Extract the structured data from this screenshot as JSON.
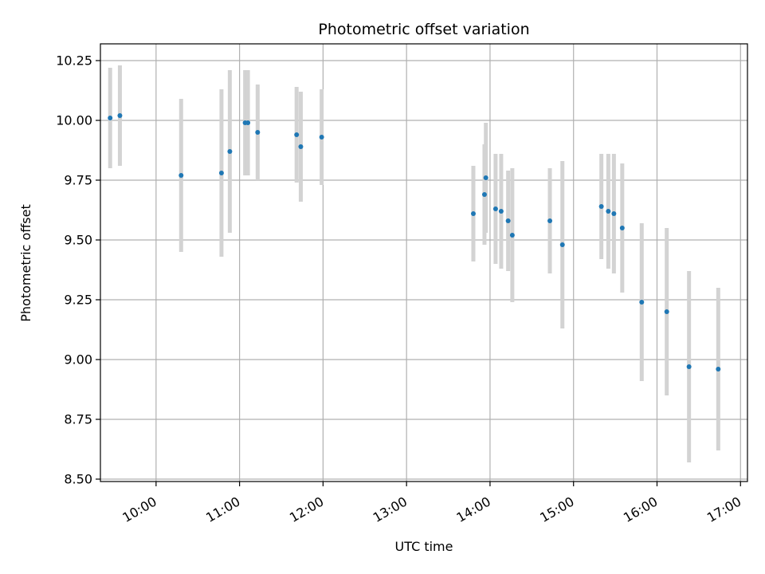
{
  "chart_data": {
    "type": "scatter",
    "title": "Photometric offset variation",
    "xlabel": "UTC time",
    "ylabel": "Photometric offset",
    "grid": true,
    "xlim": [
      "09:20",
      "17:05"
    ],
    "ylim": [
      8.49,
      10.32
    ],
    "x_ticks": [
      "10:00",
      "11:00",
      "12:00",
      "13:00",
      "14:00",
      "15:00",
      "16:00",
      "17:00"
    ],
    "y_ticks": [
      "8.50",
      "8.75",
      "9.00",
      "9.25",
      "9.50",
      "9.75",
      "10.00",
      "10.25"
    ],
    "colors": {
      "points": "#1f77b4",
      "errorbars": "#d3d3d3",
      "grid": "#b0b0b0"
    },
    "points": [
      {
        "x": "09:27",
        "y": 10.01,
        "yerr": 0.21
      },
      {
        "x": "09:34",
        "y": 10.02,
        "yerr": 0.21
      },
      {
        "x": "10:18",
        "y": 9.77,
        "yerr": 0.32
      },
      {
        "x": "10:47",
        "y": 9.78,
        "yerr": 0.35
      },
      {
        "x": "10:53",
        "y": 9.87,
        "yerr": 0.34
      },
      {
        "x": "11:04",
        "y": 9.99,
        "yerr": 0.22
      },
      {
        "x": "11:06",
        "y": 9.99,
        "yerr": 0.22
      },
      {
        "x": "11:13",
        "y": 9.95,
        "yerr": 0.2
      },
      {
        "x": "11:41",
        "y": 9.94,
        "yerr": 0.2
      },
      {
        "x": "11:44",
        "y": 9.89,
        "yerr": 0.23
      },
      {
        "x": "11:59",
        "y": 9.93,
        "yerr": 0.2
      },
      {
        "x": "13:48",
        "y": 9.61,
        "yerr": 0.2
      },
      {
        "x": "13:56",
        "y": 9.69,
        "yerr": 0.21
      },
      {
        "x": "13:57",
        "y": 9.76,
        "yerr": 0.23
      },
      {
        "x": "14:04",
        "y": 9.63,
        "yerr": 0.23
      },
      {
        "x": "14:08",
        "y": 9.62,
        "yerr": 0.24
      },
      {
        "x": "14:13",
        "y": 9.58,
        "yerr": 0.21
      },
      {
        "x": "14:16",
        "y": 9.52,
        "yerr": 0.28
      },
      {
        "x": "14:43",
        "y": 9.58,
        "yerr": 0.22
      },
      {
        "x": "14:52",
        "y": 9.48,
        "yerr": 0.35
      },
      {
        "x": "15:20",
        "y": 9.64,
        "yerr": 0.22
      },
      {
        "x": "15:25",
        "y": 9.62,
        "yerr": 0.24
      },
      {
        "x": "15:29",
        "y": 9.61,
        "yerr": 0.25
      },
      {
        "x": "15:35",
        "y": 9.55,
        "yerr": 0.27
      },
      {
        "x": "15:49",
        "y": 9.24,
        "yerr": 0.33
      },
      {
        "x": "16:07",
        "y": 9.2,
        "yerr": 0.35
      },
      {
        "x": "16:23",
        "y": 8.97,
        "yerr": 0.4
      },
      {
        "x": "16:44",
        "y": 8.96,
        "yerr": 0.34
      }
    ]
  }
}
